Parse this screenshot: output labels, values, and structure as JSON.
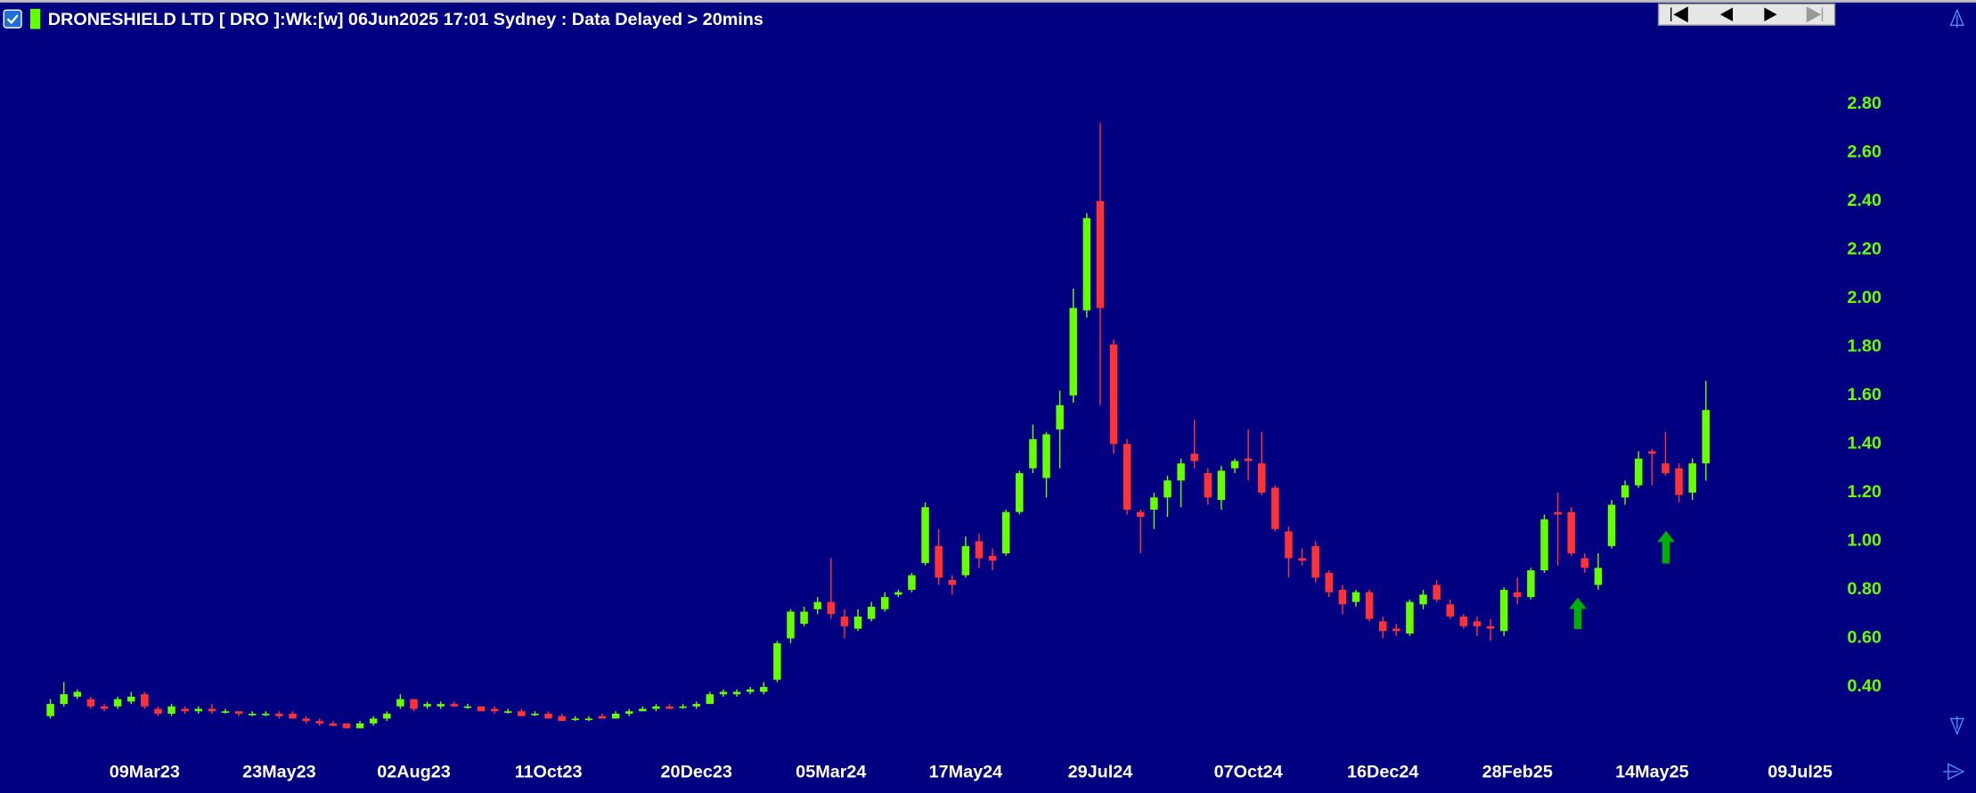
{
  "chart_data": {
    "type": "candlestick",
    "title": "DRONESHIELD LTD [ DRO ]:Wk:[w]  06Jun2025 17:01 Sydney : Data Delayed > 20mins",
    "categories": [
      null,
      null,
      null,
      null,
      null,
      null,
      null,
      "09Mar23",
      null,
      null,
      null,
      null,
      null,
      null,
      null,
      null,
      null,
      "23May23",
      null,
      null,
      null,
      null,
      null,
      null,
      null,
      null,
      null,
      "02Aug23",
      null,
      null,
      null,
      null,
      null,
      null,
      null,
      null,
      null,
      "11Oct23",
      null,
      null,
      null,
      null,
      null,
      null,
      null,
      null,
      null,
      null,
      "20Dec23",
      null,
      null,
      null,
      null,
      null,
      null,
      null,
      null,
      null,
      "05Mar24",
      null,
      null,
      null,
      null,
      null,
      null,
      null,
      null,
      null,
      "17May24",
      null,
      null,
      null,
      null,
      null,
      null,
      null,
      null,
      null,
      "29Jul24",
      null,
      null,
      null,
      null,
      null,
      null,
      null,
      null,
      null,
      null,
      "07Oct24",
      null,
      null,
      null,
      null,
      null,
      null,
      null,
      null,
      null,
      "16Dec24",
      null,
      null,
      null,
      null,
      null,
      null,
      null,
      null,
      null,
      "28Feb25",
      null,
      null,
      null,
      null,
      null,
      null,
      null,
      null,
      null,
      "14May25",
      null,
      null,
      null,
      null,
      null,
      null,
      null,
      null,
      null,
      null,
      "09Jul25"
    ],
    "open": [
      0.28,
      0.33,
      0.36,
      0.35,
      0.32,
      0.32,
      0.34,
      0.37,
      0.31,
      0.29,
      0.31,
      0.3,
      0.31,
      0.3,
      0.3,
      0.29,
      0.29,
      0.29,
      0.29,
      0.27,
      0.26,
      0.25,
      0.25,
      0.23,
      0.25,
      0.27,
      0.32,
      0.35,
      0.32,
      0.32,
      0.33,
      0.32,
      0.32,
      0.31,
      0.3,
      0.3,
      0.29,
      0.29,
      0.28,
      0.27,
      0.27,
      0.28,
      0.27,
      0.29,
      0.3,
      0.31,
      0.32,
      0.32,
      0.32,
      0.33,
      0.37,
      0.37,
      0.38,
      0.38,
      0.43,
      0.6,
      0.66,
      0.72,
      0.75,
      0.69,
      0.64,
      0.68,
      0.72,
      0.78,
      0.8,
      0.91,
      0.98,
      0.84,
      0.86,
      1.0,
      0.94,
      0.95,
      1.12,
      1.3,
      1.26,
      1.46,
      1.6,
      1.95,
      2.4,
      1.81,
      1.4,
      1.12,
      1.13,
      1.18,
      1.25,
      1.36,
      1.28,
      1.17,
      1.3,
      1.34,
      1.32,
      1.22,
      1.04,
      0.93,
      0.98,
      0.87,
      0.8,
      0.75,
      0.79,
      0.67,
      0.64,
      0.62,
      0.74,
      0.82,
      0.74,
      0.69,
      0.67,
      0.65,
      0.63,
      0.79,
      0.77,
      0.88,
      1.12,
      1.12,
      0.93,
      0.82,
      0.98,
      1.18,
      1.23,
      1.37,
      1.32,
      1.3,
      1.2,
      1.32,
      null,
      null,
      null,
      null,
      null,
      null,
      null
    ],
    "high": [
      0.35,
      0.42,
      0.39,
      0.36,
      0.33,
      0.36,
      0.38,
      0.38,
      0.32,
      0.33,
      0.32,
      0.32,
      0.33,
      0.31,
      0.3,
      0.3,
      0.3,
      0.3,
      0.3,
      0.28,
      0.27,
      0.26,
      0.25,
      0.26,
      0.28,
      0.3,
      0.37,
      0.35,
      0.34,
      0.34,
      0.34,
      0.33,
      0.32,
      0.32,
      0.31,
      0.31,
      0.3,
      0.3,
      0.29,
      0.28,
      0.28,
      0.29,
      0.3,
      0.31,
      0.32,
      0.33,
      0.33,
      0.33,
      0.34,
      0.38,
      0.39,
      0.39,
      0.4,
      0.42,
      0.59,
      0.72,
      0.73,
      0.77,
      0.93,
      0.72,
      0.72,
      0.75,
      0.79,
      0.8,
      0.87,
      1.16,
      1.05,
      0.86,
      1.02,
      1.03,
      0.97,
      1.13,
      1.29,
      1.48,
      1.45,
      1.62,
      2.04,
      2.35,
      2.72,
      1.83,
      1.42,
      1.13,
      1.2,
      1.27,
      1.34,
      1.5,
      1.3,
      1.31,
      1.34,
      1.46,
      1.45,
      1.23,
      1.06,
      0.97,
      1.0,
      0.88,
      0.82,
      0.8,
      0.8,
      0.69,
      0.66,
      0.76,
      0.8,
      0.84,
      0.76,
      0.7,
      0.69,
      0.68,
      0.81,
      0.85,
      0.89,
      1.11,
      1.2,
      1.14,
      0.95,
      0.95,
      1.17,
      1.25,
      1.37,
      1.38,
      1.45,
      1.32,
      1.34,
      1.66,
      null,
      null,
      null,
      null,
      null,
      null,
      null
    ],
    "low": [
      0.27,
      0.32,
      0.35,
      0.31,
      0.3,
      0.31,
      0.33,
      0.31,
      0.28,
      0.28,
      0.29,
      0.29,
      0.29,
      0.29,
      0.28,
      0.28,
      0.28,
      0.27,
      0.27,
      0.25,
      0.24,
      0.24,
      0.23,
      0.23,
      0.24,
      0.26,
      0.31,
      0.3,
      0.31,
      0.31,
      0.32,
      0.31,
      0.3,
      0.29,
      0.29,
      0.28,
      0.28,
      0.27,
      0.26,
      0.26,
      0.26,
      0.27,
      0.27,
      0.28,
      0.3,
      0.3,
      0.31,
      0.31,
      0.31,
      0.33,
      0.36,
      0.36,
      0.37,
      0.37,
      0.42,
      0.58,
      0.65,
      0.7,
      0.68,
      0.6,
      0.63,
      0.67,
      0.71,
      0.77,
      0.79,
      0.9,
      0.82,
      0.78,
      0.85,
      0.89,
      0.88,
      0.94,
      1.11,
      1.28,
      1.18,
      1.3,
      1.57,
      1.92,
      1.56,
      1.36,
      1.11,
      0.95,
      1.05,
      1.1,
      1.14,
      1.3,
      1.15,
      1.13,
      1.28,
      1.25,
      1.19,
      1.04,
      0.85,
      0.9,
      0.83,
      0.77,
      0.7,
      0.73,
      0.67,
      0.6,
      0.61,
      0.61,
      0.72,
      0.75,
      0.68,
      0.64,
      0.61,
      0.59,
      0.61,
      0.74,
      0.76,
      0.87,
      0.9,
      0.94,
      0.87,
      0.8,
      0.97,
      1.15,
      1.22,
      1.23,
      1.27,
      1.16,
      1.17,
      1.25,
      null,
      null,
      null,
      null,
      null,
      null,
      null
    ],
    "close": [
      0.33,
      0.37,
      0.38,
      0.32,
      0.31,
      0.35,
      0.36,
      0.32,
      0.29,
      0.32,
      0.3,
      0.31,
      0.3,
      0.3,
      0.29,
      0.29,
      0.29,
      0.28,
      0.27,
      0.26,
      0.25,
      0.24,
      0.23,
      0.25,
      0.27,
      0.29,
      0.35,
      0.31,
      0.33,
      0.33,
      0.32,
      0.32,
      0.3,
      0.3,
      0.3,
      0.28,
      0.29,
      0.27,
      0.26,
      0.27,
      0.27,
      0.27,
      0.29,
      0.3,
      0.31,
      0.32,
      0.31,
      0.32,
      0.33,
      0.37,
      0.38,
      0.38,
      0.39,
      0.4,
      0.58,
      0.71,
      0.71,
      0.75,
      0.7,
      0.65,
      0.69,
      0.73,
      0.77,
      0.79,
      0.86,
      1.14,
      0.85,
      0.82,
      0.98,
      0.93,
      0.92,
      1.12,
      1.28,
      1.42,
      1.44,
      1.56,
      1.96,
      2.33,
      1.96,
      1.4,
      1.13,
      1.1,
      1.18,
      1.25,
      1.32,
      1.33,
      1.18,
      1.29,
      1.33,
      1.33,
      1.2,
      1.05,
      0.93,
      0.92,
      0.85,
      0.79,
      0.74,
      0.79,
      0.68,
      0.63,
      0.63,
      0.75,
      0.78,
      0.76,
      0.69,
      0.65,
      0.65,
      0.64,
      0.8,
      0.77,
      0.88,
      1.09,
      1.11,
      0.95,
      0.89,
      0.89,
      1.15,
      1.23,
      1.34,
      1.36,
      1.28,
      1.19,
      1.32,
      1.54,
      null,
      null,
      null,
      null,
      null,
      null,
      null
    ],
    "up_color": "#66ff00",
    "down_color": "#ff3333",
    "ylim": [
      0.14,
      3.02
    ],
    "yticks": [
      {
        "value": 0.4,
        "label": "0.40"
      },
      {
        "value": 0.6,
        "label": "0.60"
      },
      {
        "value": 0.8,
        "label": "0.80"
      },
      {
        "value": 1.0,
        "label": "1.00"
      },
      {
        "value": 1.2,
        "label": "1.20"
      },
      {
        "value": 1.4,
        "label": "1.40"
      },
      {
        "value": 1.6,
        "label": "1.60"
      },
      {
        "value": 1.8,
        "label": "1.80"
      },
      {
        "value": 2.0,
        "label": "2.00"
      },
      {
        "value": 2.2,
        "label": "2.20"
      },
      {
        "value": 2.4,
        "label": "2.40"
      },
      {
        "value": 2.6,
        "label": "2.60"
      },
      {
        "value": 2.8,
        "label": "2.80"
      }
    ]
  }
}
